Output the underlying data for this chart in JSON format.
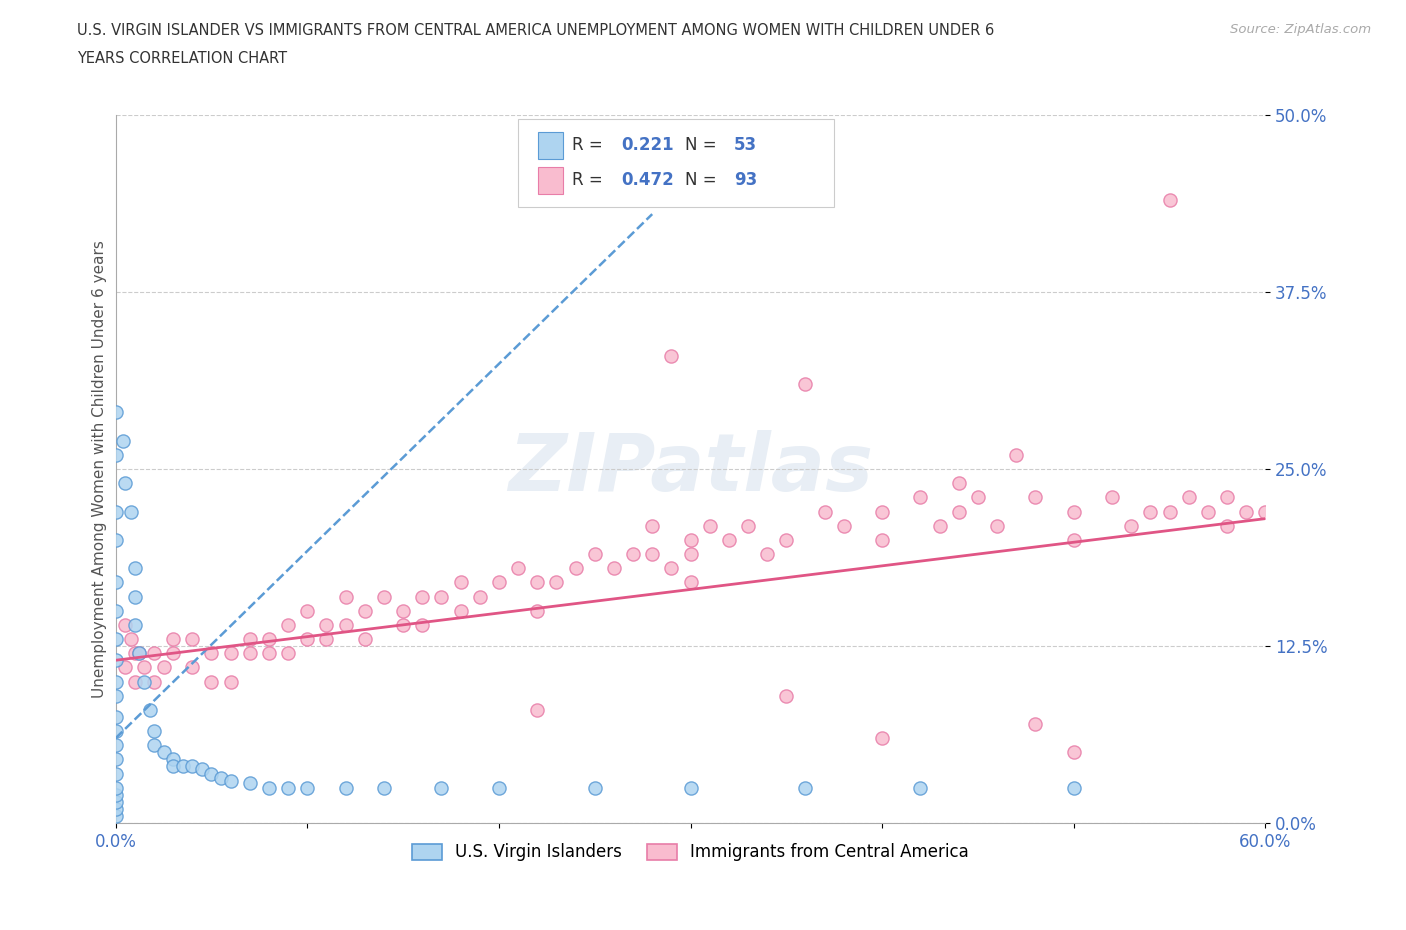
{
  "title_line1": "U.S. VIRGIN ISLANDER VS IMMIGRANTS FROM CENTRAL AMERICA UNEMPLOYMENT AMONG WOMEN WITH CHILDREN UNDER 6",
  "title_line2": "YEARS CORRELATION CHART",
  "source": "Source: ZipAtlas.com",
  "ylabel": "Unemployment Among Women with Children Under 6 years",
  "xlim": [
    0,
    0.6
  ],
  "ylim": [
    0,
    0.5
  ],
  "yticks": [
    0.0,
    0.125,
    0.25,
    0.375,
    0.5
  ],
  "ytick_labels": [
    "0.0%",
    "12.5%",
    "25.0%",
    "37.5%",
    "50.0%"
  ],
  "xticks": [
    0.0,
    0.1,
    0.2,
    0.3,
    0.4,
    0.5,
    0.6
  ],
  "xtick_labels": [
    "0.0%",
    "",
    "",
    "",
    "",
    "",
    "60.0%"
  ],
  "legend1_r": "0.221",
  "legend1_n": "53",
  "legend2_r": "0.472",
  "legend2_n": "93",
  "blue_face": "#aed4f0",
  "blue_edge": "#5b9bd5",
  "pink_face": "#f9bccf",
  "pink_edge": "#e87da8",
  "blue_line_color": "#5b9bd5",
  "pink_line_color": "#e05585",
  "tick_color": "#4472c4",
  "watermark": "ZIPatlas",
  "legend_label1": "U.S. Virgin Islanders",
  "legend_label2": "Immigrants from Central America",
  "blue_x": [
    0.0,
    0.0,
    0.0,
    0.0,
    0.0,
    0.0,
    0.0,
    0.0,
    0.0,
    0.0,
    0.0,
    0.0,
    0.0,
    0.0,
    0.0,
    0.0,
    0.0,
    0.0,
    0.0,
    0.0,
    0.004,
    0.005,
    0.008,
    0.01,
    0.01,
    0.01,
    0.012,
    0.015,
    0.018,
    0.02,
    0.02,
    0.025,
    0.03,
    0.03,
    0.035,
    0.04,
    0.045,
    0.05,
    0.055,
    0.06,
    0.07,
    0.08,
    0.09,
    0.1,
    0.12,
    0.14,
    0.17,
    0.2,
    0.25,
    0.3,
    0.36,
    0.42,
    0.5
  ],
  "blue_y": [
    0.005,
    0.01,
    0.015,
    0.02,
    0.025,
    0.035,
    0.045,
    0.055,
    0.065,
    0.075,
    0.09,
    0.1,
    0.115,
    0.13,
    0.15,
    0.17,
    0.2,
    0.22,
    0.26,
    0.29,
    0.27,
    0.24,
    0.22,
    0.18,
    0.16,
    0.14,
    0.12,
    0.1,
    0.08,
    0.065,
    0.055,
    0.05,
    0.045,
    0.04,
    0.04,
    0.04,
    0.038,
    0.035,
    0.032,
    0.03,
    0.028,
    0.025,
    0.025,
    0.025,
    0.025,
    0.025,
    0.025,
    0.025,
    0.025,
    0.025,
    0.025,
    0.025,
    0.025
  ],
  "blue_line_x": [
    0.0,
    0.28
  ],
  "blue_line_y": [
    0.06,
    0.43
  ],
  "pink_line_x": [
    0.0,
    0.6
  ],
  "pink_line_y": [
    0.115,
    0.215
  ],
  "pink_x": [
    0.005,
    0.005,
    0.008,
    0.01,
    0.01,
    0.012,
    0.015,
    0.02,
    0.02,
    0.025,
    0.03,
    0.03,
    0.04,
    0.04,
    0.05,
    0.05,
    0.06,
    0.06,
    0.07,
    0.07,
    0.08,
    0.08,
    0.09,
    0.09,
    0.1,
    0.1,
    0.11,
    0.11,
    0.12,
    0.12,
    0.13,
    0.13,
    0.14,
    0.15,
    0.15,
    0.16,
    0.16,
    0.17,
    0.18,
    0.18,
    0.19,
    0.2,
    0.21,
    0.22,
    0.22,
    0.23,
    0.24,
    0.25,
    0.26,
    0.27,
    0.28,
    0.28,
    0.29,
    0.3,
    0.3,
    0.3,
    0.31,
    0.32,
    0.33,
    0.34,
    0.35,
    0.37,
    0.38,
    0.4,
    0.4,
    0.42,
    0.43,
    0.44,
    0.45,
    0.46,
    0.48,
    0.5,
    0.5,
    0.52,
    0.53,
    0.54,
    0.55,
    0.56,
    0.57,
    0.58,
    0.58,
    0.59,
    0.6,
    0.29,
    0.55,
    0.36,
    0.47,
    0.35,
    0.4,
    0.22,
    0.5,
    0.44,
    0.48
  ],
  "pink_y": [
    0.14,
    0.11,
    0.13,
    0.12,
    0.1,
    0.12,
    0.11,
    0.12,
    0.1,
    0.11,
    0.12,
    0.13,
    0.11,
    0.13,
    0.12,
    0.1,
    0.12,
    0.1,
    0.13,
    0.12,
    0.13,
    0.12,
    0.14,
    0.12,
    0.13,
    0.15,
    0.14,
    0.13,
    0.14,
    0.16,
    0.15,
    0.13,
    0.16,
    0.15,
    0.14,
    0.16,
    0.14,
    0.16,
    0.17,
    0.15,
    0.16,
    0.17,
    0.18,
    0.17,
    0.15,
    0.17,
    0.18,
    0.19,
    0.18,
    0.19,
    0.19,
    0.21,
    0.18,
    0.2,
    0.17,
    0.19,
    0.21,
    0.2,
    0.21,
    0.19,
    0.2,
    0.22,
    0.21,
    0.22,
    0.2,
    0.23,
    0.21,
    0.22,
    0.23,
    0.21,
    0.23,
    0.22,
    0.2,
    0.23,
    0.21,
    0.22,
    0.22,
    0.23,
    0.22,
    0.23,
    0.21,
    0.22,
    0.22,
    0.33,
    0.44,
    0.31,
    0.26,
    0.09,
    0.06,
    0.08,
    0.05,
    0.24,
    0.07
  ]
}
